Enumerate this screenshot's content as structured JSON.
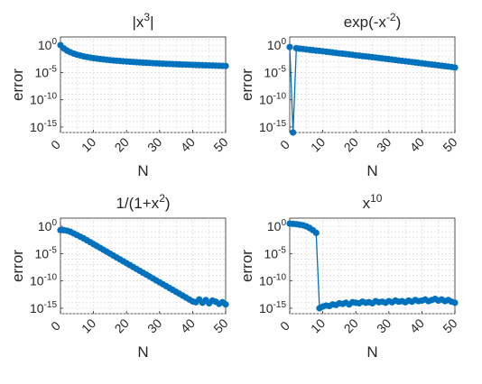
{
  "chart_data": [
    {
      "type": "line",
      "title": "|x",
      "title_sup": "3",
      "title_tail": "|",
      "xlabel": "N",
      "ylabel": "error",
      "xlim": [
        0,
        50
      ],
      "ylim_log10": [
        -16,
        1.5
      ],
      "y_scale": "log",
      "grid": "on (major and minor, dotted)",
      "xticks": [
        "0",
        "10",
        "20",
        "30",
        "40",
        "50"
      ],
      "yticks": [
        {
          "base": "10",
          "exp": "0",
          "log10": 0
        },
        {
          "base": "10",
          "exp": "-5",
          "log10": -5
        },
        {
          "base": "10",
          "exp": "-10",
          "log10": -10
        },
        {
          "base": "10",
          "exp": "-15",
          "log10": -15
        }
      ],
      "x": [
        0,
        1,
        2,
        3,
        4,
        5,
        6,
        7,
        8,
        9,
        10,
        11,
        12,
        13,
        14,
        15,
        16,
        17,
        18,
        19,
        20,
        21,
        22,
        23,
        24,
        25,
        26,
        27,
        28,
        29,
        30,
        31,
        32,
        33,
        34,
        35,
        36,
        37,
        38,
        39,
        40,
        41,
        42,
        43,
        44,
        45,
        46,
        47,
        48,
        49,
        50
      ],
      "log10_y": [
        0.0,
        -0.6,
        -1.0,
        -1.3,
        -1.55,
        -1.75,
        -1.9,
        -2.05,
        -2.17,
        -2.28,
        -2.38,
        -2.46,
        -2.54,
        -2.61,
        -2.68,
        -2.74,
        -2.8,
        -2.85,
        -2.9,
        -2.95,
        -3.0,
        -3.04,
        -3.08,
        -3.12,
        -3.16,
        -3.2,
        -3.23,
        -3.26,
        -3.3,
        -3.33,
        -3.36,
        -3.39,
        -3.42,
        -3.44,
        -3.47,
        -3.5,
        -3.52,
        -3.55,
        -3.57,
        -3.59,
        -3.62,
        -3.64,
        -3.66,
        -3.68,
        -3.7,
        -3.72,
        -3.74,
        -3.76,
        -3.78,
        -3.8,
        -3.82
      ]
    },
    {
      "type": "line",
      "title": "exp(-x",
      "title_sup": "-2",
      "title_tail": ")",
      "xlabel": "N",
      "ylabel": "error",
      "xlim": [
        0,
        50
      ],
      "ylim_log10": [
        -16,
        1.5
      ],
      "y_scale": "log",
      "grid": "on (major and minor, dotted)",
      "xticks": [
        "0",
        "10",
        "20",
        "30",
        "40",
        "50"
      ],
      "yticks": [
        {
          "base": "10",
          "exp": "0",
          "log10": 0
        },
        {
          "base": "10",
          "exp": "-5",
          "log10": -5
        },
        {
          "base": "10",
          "exp": "-10",
          "log10": -10
        },
        {
          "base": "10",
          "exp": "-15",
          "log10": -15
        }
      ],
      "x": [
        0,
        1,
        2,
        3,
        4,
        5,
        6,
        7,
        8,
        9,
        10,
        11,
        12,
        13,
        14,
        15,
        16,
        17,
        18,
        19,
        20,
        21,
        22,
        23,
        24,
        25,
        26,
        27,
        28,
        29,
        30,
        31,
        32,
        33,
        34,
        35,
        36,
        37,
        38,
        39,
        40,
        41,
        42,
        43,
        44,
        45,
        46,
        47,
        48,
        49,
        50
      ],
      "log10_y": [
        -0.35,
        -16.0,
        -0.55,
        -0.65,
        -0.7,
        -0.78,
        -0.85,
        -0.92,
        -1.0,
        -1.05,
        -1.12,
        -1.2,
        -1.27,
        -1.35,
        -1.42,
        -1.5,
        -1.56,
        -1.63,
        -1.7,
        -1.77,
        -1.85,
        -1.92,
        -2.0,
        -2.06,
        -2.13,
        -2.2,
        -2.27,
        -2.35,
        -2.42,
        -2.5,
        -2.57,
        -2.65,
        -2.72,
        -2.8,
        -2.88,
        -2.95,
        -3.02,
        -3.1,
        -3.17,
        -3.25,
        -3.32,
        -3.4,
        -3.47,
        -3.55,
        -3.62,
        -3.7,
        -3.77,
        -3.85,
        -3.92,
        -4.0,
        -4.1
      ]
    },
    {
      "type": "line",
      "title": "1/(1+x",
      "title_sup": "2",
      "title_tail": ")",
      "xlabel": "N",
      "ylabel": "error",
      "xlim": [
        0,
        50
      ],
      "ylim_log10": [
        -16,
        1.5
      ],
      "y_scale": "log",
      "grid": "on (major and minor, dotted)",
      "xticks": [
        "0",
        "10",
        "20",
        "30",
        "40",
        "50"
      ],
      "yticks": [
        {
          "base": "10",
          "exp": "0",
          "log10": 0
        },
        {
          "base": "10",
          "exp": "-5",
          "log10": -5
        },
        {
          "base": "10",
          "exp": "-10",
          "log10": -10
        },
        {
          "base": "10",
          "exp": "-15",
          "log10": -15
        }
      ],
      "x": [
        0,
        1,
        2,
        3,
        4,
        5,
        6,
        7,
        8,
        9,
        10,
        11,
        12,
        13,
        14,
        15,
        16,
        17,
        18,
        19,
        20,
        21,
        22,
        23,
        24,
        25,
        26,
        27,
        28,
        29,
        30,
        31,
        32,
        33,
        34,
        35,
        36,
        37,
        38,
        39,
        40,
        41,
        42,
        43,
        44,
        45,
        46,
        47,
        48,
        49,
        50
      ],
      "log10_y": [
        -0.7,
        -0.7,
        -0.8,
        -1.0,
        -1.3,
        -1.6,
        -1.9,
        -2.2,
        -2.55,
        -2.9,
        -3.25,
        -3.6,
        -3.95,
        -4.3,
        -4.65,
        -5.0,
        -5.35,
        -5.7,
        -6.05,
        -6.4,
        -6.75,
        -7.1,
        -7.45,
        -7.8,
        -8.15,
        -8.5,
        -8.85,
        -9.2,
        -9.55,
        -9.9,
        -10.25,
        -10.6,
        -10.95,
        -11.3,
        -11.65,
        -12.0,
        -12.35,
        -12.7,
        -13.05,
        -13.4,
        -13.75,
        -13.9,
        -13.4,
        -14.0,
        -13.5,
        -14.1,
        -13.6,
        -13.8,
        -14.2,
        -13.9,
        -14.3
      ]
    },
    {
      "type": "line",
      "title": "x",
      "title_sup": "10",
      "title_tail": "",
      "xlabel": "N",
      "ylabel": "error",
      "xlim": [
        0,
        50
      ],
      "ylim_log10": [
        -16,
        1.5
      ],
      "y_scale": "log",
      "grid": "on (major and minor, dotted)",
      "xticks": [
        "0",
        "10",
        "20",
        "30",
        "40",
        "50"
      ],
      "yticks": [
        {
          "base": "10",
          "exp": "0",
          "log10": 0
        },
        {
          "base": "10",
          "exp": "-5",
          "log10": -5
        },
        {
          "base": "10",
          "exp": "-10",
          "log10": -10
        },
        {
          "base": "10",
          "exp": "-15",
          "log10": -15
        }
      ],
      "x": [
        0,
        1,
        2,
        3,
        4,
        5,
        6,
        7,
        8,
        9,
        10,
        11,
        12,
        13,
        14,
        15,
        16,
        17,
        18,
        19,
        20,
        21,
        22,
        23,
        24,
        25,
        26,
        27,
        28,
        29,
        30,
        31,
        32,
        33,
        34,
        35,
        36,
        37,
        38,
        39,
        40,
        41,
        42,
        43,
        44,
        45,
        46,
        47,
        48,
        49,
        50
      ],
      "log10_y": [
        0.5,
        0.45,
        0.4,
        0.3,
        0.2,
        0.0,
        -0.3,
        -0.7,
        -1.2,
        -15.0,
        -14.7,
        -14.5,
        -14.6,
        -14.3,
        -14.4,
        -14.1,
        -14.2,
        -14.0,
        -14.3,
        -13.9,
        -14.0,
        -14.1,
        -13.8,
        -14.0,
        -13.9,
        -14.1,
        -13.7,
        -13.9,
        -13.8,
        -14.0,
        -13.7,
        -13.9,
        -13.6,
        -13.8,
        -13.7,
        -13.9,
        -13.6,
        -13.8,
        -13.5,
        -13.7,
        -13.6,
        -13.4,
        -13.7,
        -13.5,
        -13.3,
        -13.6,
        -13.4,
        -13.7,
        -13.5,
        -13.8,
        -14.0
      ]
    }
  ],
  "colors": {
    "series": "#0072bd",
    "axis": "#262626",
    "grid": "#d9d9d9"
  }
}
